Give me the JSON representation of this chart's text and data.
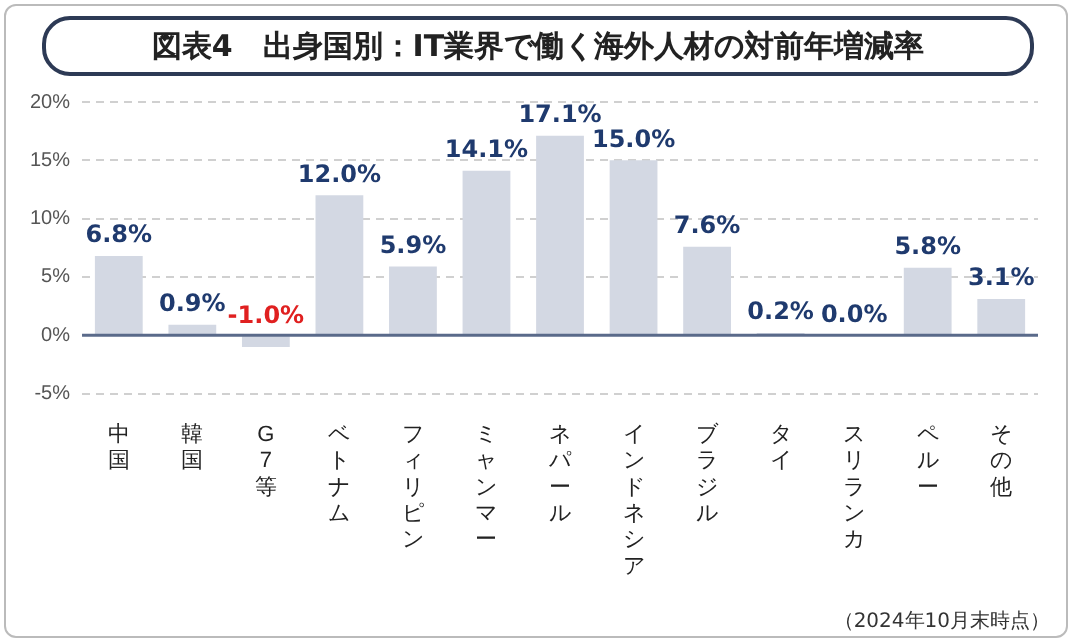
{
  "chart_data": {
    "type": "bar",
    "title": "図表4　出身国別：IT業界で働く海外人材の対前年増減率",
    "categories": [
      "中国",
      "韓国",
      "G7等",
      "ベトナム",
      "フィリピン",
      "ミャンマー",
      "ネパール",
      "インドネシア",
      "ブラジル",
      "タイ",
      "スリランカ",
      "ペルー",
      "その他"
    ],
    "values": [
      6.8,
      0.9,
      -1.0,
      12.0,
      5.9,
      14.1,
      17.1,
      15.0,
      7.6,
      0.2,
      0.0,
      5.8,
      3.1
    ],
    "value_labels": [
      "6.8%",
      "0.9%",
      "-1.0%",
      "12.0%",
      "5.9%",
      "14.1%",
      "17.1%",
      "15.0%",
      "7.6%",
      "0.2%",
      "0.0%",
      "5.8%",
      "3.1%"
    ],
    "color": "#d3d8e3",
    "ylim": [
      -5,
      20
    ],
    "yticks": [
      {
        "value": -5,
        "label": "-5%"
      },
      {
        "value": 0,
        "label": "0%"
      },
      {
        "value": 5,
        "label": "5%"
      },
      {
        "value": 10,
        "label": "10%"
      },
      {
        "value": 15,
        "label": "15%"
      },
      {
        "value": 20,
        "label": "20%"
      }
    ],
    "grid": "y",
    "ref_lines": [
      {
        "axis": "y",
        "value": 0,
        "color": "#5a6a8a"
      }
    ],
    "annotations": [
      "（2024年10月末時点）"
    ]
  }
}
